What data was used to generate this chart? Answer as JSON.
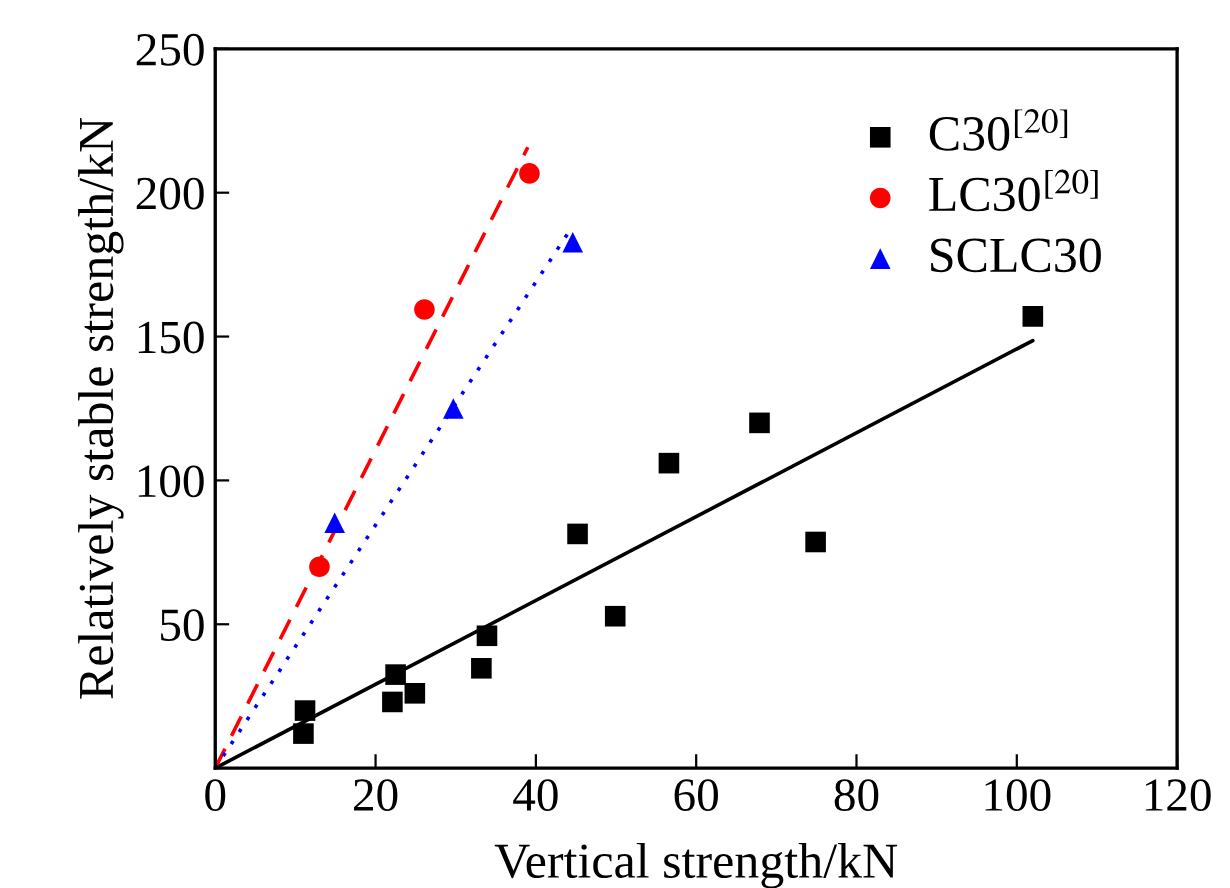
{
  "chart_data": {
    "type": "scatter",
    "xlabel": "Vertical strength/kN",
    "ylabel": "Relatively stable strength/kN",
    "xlim": [
      0,
      120
    ],
    "ylim": [
      0,
      250
    ],
    "xticks": [
      0,
      20,
      40,
      60,
      80,
      100,
      120
    ],
    "yticks": [
      50,
      100,
      150,
      200,
      250
    ],
    "grid": false,
    "legend": "top right",
    "series": [
      {
        "name": "C30$^{[20]}$",
        "marker": "square",
        "color": "#000000",
        "x": [
          11.2,
          11,
          22.1,
          22.5,
          24.9,
          33.2,
          33.9,
          45.2,
          49.9,
          56.6,
          67.9,
          74.9,
          102
        ],
        "values": [
          20,
          12,
          23,
          32.5,
          26,
          34.7,
          46,
          81.4,
          52.8,
          106,
          120,
          78.6,
          157
        ]
      },
      {
        "name": "LC30$^{[20]}$",
        "marker": "circle",
        "color": "#ff0000",
        "x": [
          13,
          26.1,
          39.2
        ],
        "values": [
          70,
          159.4,
          206.7
        ]
      },
      {
        "name": "SCLC30",
        "marker": "triangle",
        "color": "#0000ff",
        "x": [
          14.9,
          29.7,
          44.6
        ],
        "values": [
          85.3,
          125,
          182.8
        ]
      },
      {
        "type": "line",
        "line_style": "solid",
        "color": "#000000",
        "x": [
          0,
          102
        ],
        "values": [
          0,
          148.6
        ]
      },
      {
        "type": "line",
        "line_style": "dashed",
        "color": "#ff0000",
        "x": [
          0,
          39
        ],
        "values": [
          0,
          215.8
        ]
      },
      {
        "type": "line",
        "line_style": "dotted",
        "color": "#0000ff",
        "x": [
          0,
          44.2
        ],
        "values": [
          0,
          186.7
        ]
      }
    ]
  }
}
